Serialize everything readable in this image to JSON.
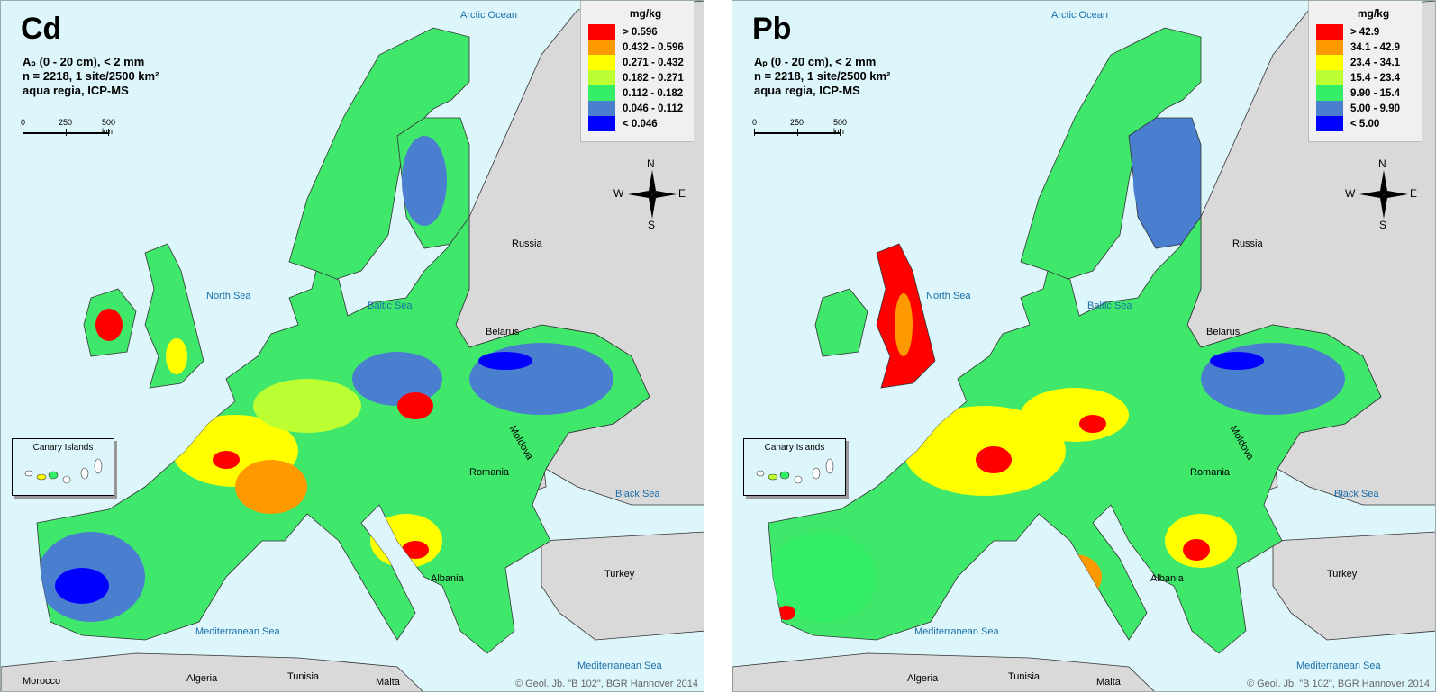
{
  "panels": [
    {
      "element": "Cd",
      "meta": [
        "Aₚ (0 - 20 cm), < 2 mm",
        "n = 2218, 1 site/2500 km²",
        "aqua regia, ICP-MS"
      ],
      "legend": {
        "title": "mg/kg",
        "classes": [
          {
            "label": "> 0.596",
            "color": "#ff0000"
          },
          {
            "label": "0.432 - 0.596",
            "color": "#ff9900"
          },
          {
            "label": "0.271 - 0.432",
            "color": "#ffff00"
          },
          {
            "label": "0.182 - 0.271",
            "color": "#bbff33"
          },
          {
            "label": "0.112 - 0.182",
            "color": "#33ee66"
          },
          {
            "label": "0.046 - 0.112",
            "color": "#4a7fd0"
          },
          {
            "label": "< 0.046",
            "color": "#0000ff"
          }
        ]
      }
    },
    {
      "element": "Pb",
      "meta": [
        "Aₚ (0 - 20 cm), < 2 mm",
        "n = 2218, 1 site/2500 km²",
        "aqua regia, ICP-MS"
      ],
      "legend": {
        "title": "mg/kg",
        "classes": [
          {
            "label": "> 42.9",
            "color": "#ff0000"
          },
          {
            "label": "34.1 - 42.9",
            "color": "#ff9900"
          },
          {
            "label": "23.4 - 34.1",
            "color": "#ffff00"
          },
          {
            "label": "15.4 - 23.4",
            "color": "#bbff33"
          },
          {
            "label": "9.90 - 15.4",
            "color": "#33ee66"
          },
          {
            "label": "5.00 - 9.90",
            "color": "#4a7fd0"
          },
          {
            "label": "< 5.00",
            "color": "#0000ff"
          }
        ]
      }
    }
  ],
  "scale": {
    "labels": [
      "0",
      "250",
      "500 km"
    ]
  },
  "compass": {
    "n": "N",
    "s": "S",
    "e": "E",
    "w": "W"
  },
  "seas": {
    "arctic": "Arctic Ocean",
    "north": "North Sea",
    "baltic": "Baltic Sea",
    "black": "Black Sea",
    "med_west": "Mediterranean Sea",
    "med_east": "Mediterranean Sea"
  },
  "countries": {
    "russia": "Russia",
    "belarus": "Belarus",
    "moldova": "Moldova",
    "romania": "Romania",
    "turkey": "Turkey",
    "albania": "Albania",
    "morocco": "Morocco",
    "algeria": "Algeria",
    "tunisia": "Tunisia",
    "malta": "Malta"
  },
  "inset": {
    "title": "Canary Islands"
  },
  "credit": "© Geol. Jb. \"B 102\", BGR Hannover 2014",
  "colors": {
    "sea": "#ddf6fb",
    "nonsurvey_land": "#d9d9d9",
    "sea_label": "#1a6fa8"
  }
}
